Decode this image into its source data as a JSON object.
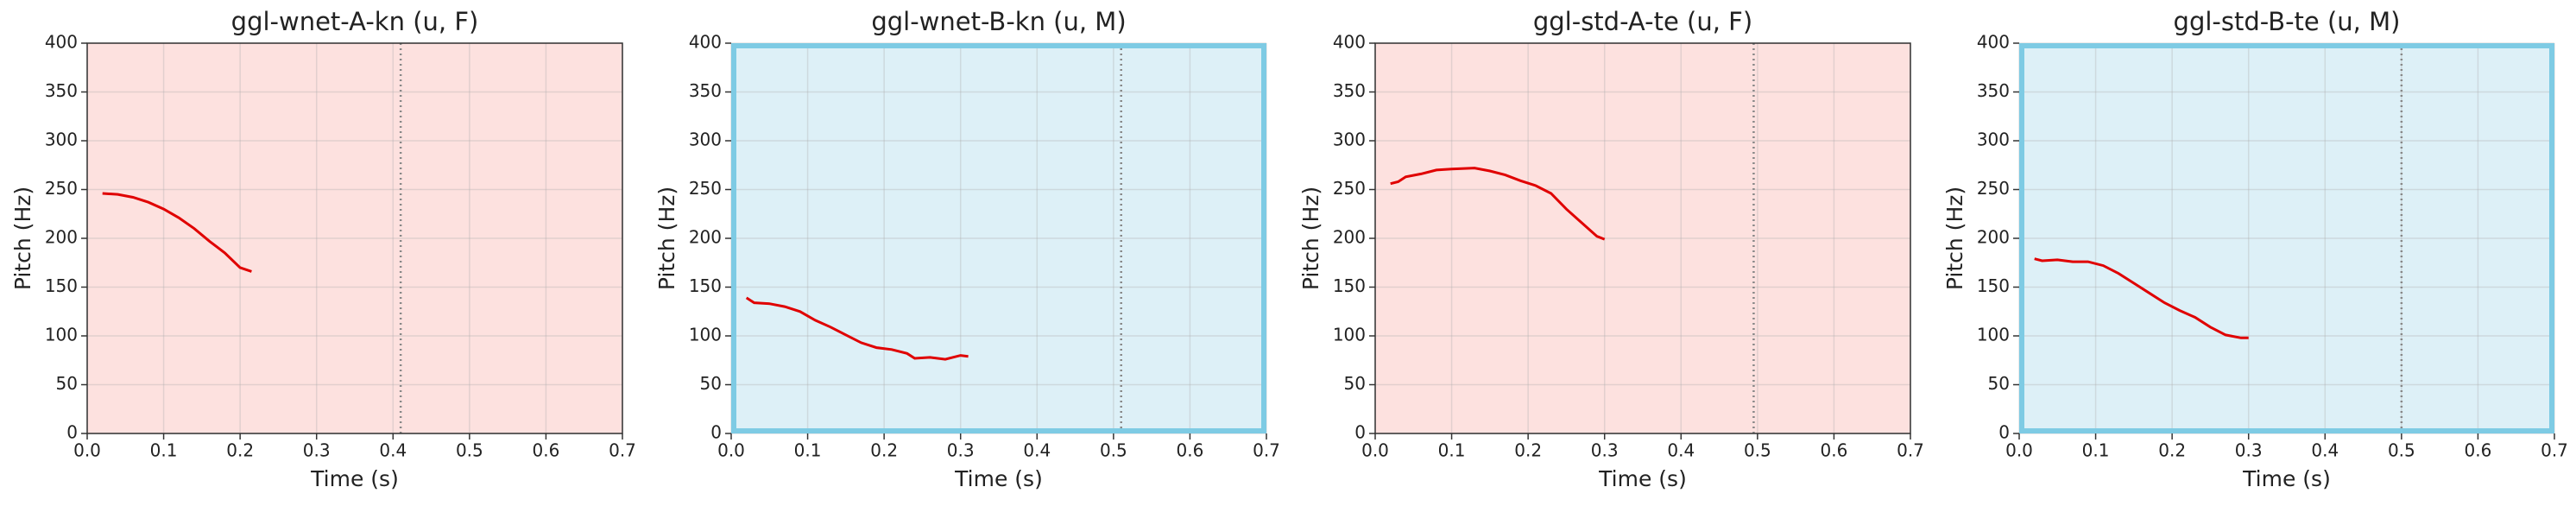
{
  "chart_data": [
    {
      "type": "line",
      "title": "ggl-wnet-A-kn (u, F)",
      "xlabel": "Time (s)",
      "ylabel": "Pitch (Hz)",
      "x": [
        0.02,
        0.04,
        0.06,
        0.08,
        0.1,
        0.12,
        0.14,
        0.16,
        0.18,
        0.2,
        0.215
      ],
      "values": [
        246,
        245,
        242,
        237,
        230,
        221,
        210,
        197,
        185,
        170,
        166
      ],
      "color": "#e00000",
      "facecolor": "#fde1df",
      "vline": 0.41,
      "xlim": [
        0,
        0.7
      ],
      "ylim": [
        0,
        400
      ],
      "xticks": [
        {
          "value": 0,
          "label": "0.0"
        },
        0.1,
        0.2,
        0.3,
        0.4,
        0.5,
        0.6,
        0.7
      ],
      "yticks": [
        0,
        50,
        100,
        150,
        200,
        250,
        300,
        350,
        400
      ],
      "grid": true
    },
    {
      "type": "line",
      "title": "ggl-wnet-B-kn (u, M)",
      "xlabel": "Time (s)",
      "ylabel": "Pitch (Hz)",
      "x": [
        0.02,
        0.03,
        0.05,
        0.07,
        0.09,
        0.11,
        0.13,
        0.15,
        0.17,
        0.19,
        0.21,
        0.23,
        0.24,
        0.26,
        0.28,
        0.3,
        0.31
      ],
      "values": [
        139,
        134,
        133,
        130,
        125,
        116,
        109,
        101,
        93,
        88,
        86,
        82,
        77,
        78,
        76,
        80,
        79
      ],
      "color": "#e00000",
      "facecolor": "#ddf0f7",
      "edgecolor": "#7ecbe4",
      "vline": 0.51,
      "xlim": [
        0,
        0.7
      ],
      "ylim": [
        0,
        400
      ],
      "xticks": [
        {
          "value": 0,
          "label": "0.0"
        },
        0.1,
        0.2,
        0.3,
        0.4,
        0.5,
        0.6,
        0.7
      ],
      "yticks": [
        0,
        50,
        100,
        150,
        200,
        250,
        300,
        350,
        400
      ],
      "grid": true
    },
    {
      "type": "line",
      "title": "ggl-std-A-te (u, F)",
      "xlabel": "Time (s)",
      "ylabel": "Pitch (Hz)",
      "x": [
        0.02,
        0.03,
        0.04,
        0.06,
        0.08,
        0.1,
        0.13,
        0.15,
        0.17,
        0.19,
        0.21,
        0.23,
        0.25,
        0.27,
        0.29,
        0.3
      ],
      "values": [
        256,
        258,
        263,
        266,
        270,
        271,
        272,
        269,
        265,
        259,
        254,
        246,
        230,
        216,
        202,
        199
      ],
      "color": "#e00000",
      "facecolor": "#fde1df",
      "vline": 0.495,
      "xlim": [
        0,
        0.7
      ],
      "ylim": [
        0,
        400
      ],
      "xticks": [
        {
          "value": 0,
          "label": "0.0"
        },
        0.1,
        0.2,
        0.3,
        0.4,
        0.5,
        0.6,
        0.7
      ],
      "yticks": [
        0,
        50,
        100,
        150,
        200,
        250,
        300,
        350,
        400
      ],
      "grid": true
    },
    {
      "type": "line",
      "title": "ggl-std-B-te (u, M)",
      "xlabel": "Time (s)",
      "ylabel": "Pitch (Hz)",
      "x": [
        0.02,
        0.03,
        0.05,
        0.07,
        0.09,
        0.11,
        0.13,
        0.15,
        0.17,
        0.19,
        0.21,
        0.23,
        0.25,
        0.27,
        0.29,
        0.3
      ],
      "values": [
        179,
        177,
        178,
        176,
        176,
        172,
        164,
        154,
        144,
        134,
        126,
        119,
        109,
        101,
        98,
        98
      ],
      "color": "#e00000",
      "facecolor": "#ddf0f7",
      "edgecolor": "#7ecbe4",
      "vline": 0.5,
      "xlim": [
        0,
        0.7
      ],
      "ylim": [
        0,
        400
      ],
      "xticks": [
        {
          "value": 0,
          "label": "0.0"
        },
        0.1,
        0.2,
        0.3,
        0.4,
        0.5,
        0.6,
        0.7
      ],
      "yticks": [
        0,
        50,
        100,
        150,
        200,
        250,
        300,
        350,
        400
      ],
      "grid": true
    }
  ]
}
